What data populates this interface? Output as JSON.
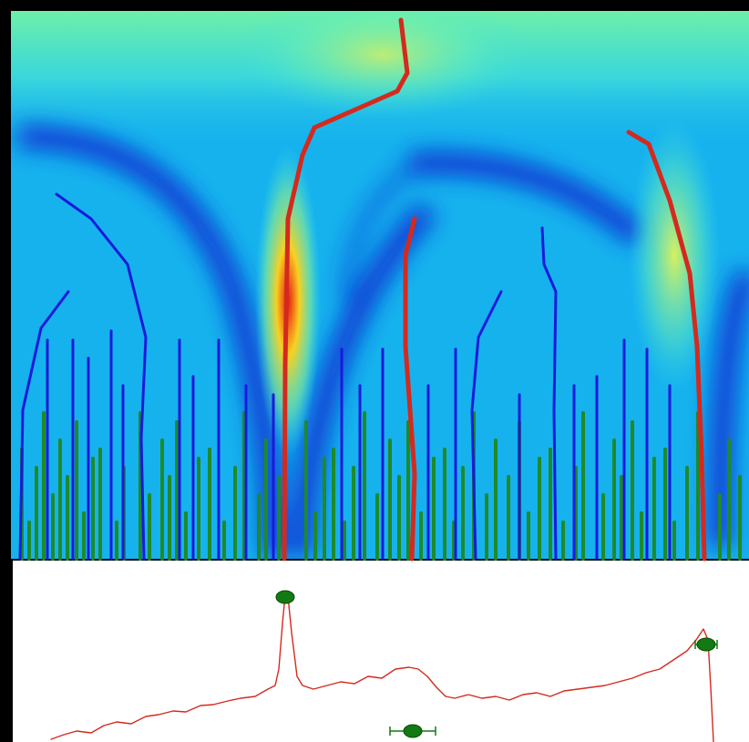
{
  "chart_data": [
    {
      "type": "ridge",
      "xlim": [
        0,
        808
      ],
      "ylim": [
        0,
        599
      ],
      "red_ridges": {
        "color": "#d42a1e",
        "lines": [
          {
            "x": [
              426,
              433,
              422,
              331,
              318,
              302,
              299,
              298
            ],
            "values": [
              591,
              533,
              513,
              473,
              443,
              373,
              213,
              0
            ]
          },
          {
            "x": [
              441,
              431,
              431,
              441,
              438
            ],
            "values": [
              373,
              333,
              233,
              93,
              0
            ]
          },
          {
            "x": [
              676,
              698,
              721,
              743,
              751,
              756,
              759
            ],
            "values": [
              468,
              455,
              393,
              313,
              233,
              113,
              0
            ]
          }
        ]
      },
      "blue_ridges": {
        "color": "#1a1adc",
        "lines": [
          {
            "x": [
              48,
              86,
              126,
              146,
              141,
              144
            ],
            "values": [
              400,
              373,
              323,
              243,
              133,
              0
            ]
          },
          {
            "x": [
              61,
              31,
              11,
              8
            ],
            "values": [
              293,
              253,
              163,
              0
            ]
          },
          {
            "x": [
              536,
              511,
              504,
              508
            ],
            "values": [
              293,
              243,
              163,
              0
            ]
          },
          {
            "x": [
              581,
              583,
              596,
              594,
              596
            ],
            "values": [
              363,
              323,
              293,
              163,
              0
            ]
          },
          {
            "x": [
              38,
              38
            ],
            "values": [
              240,
              0
            ]
          },
          {
            "x": [
              66,
              66
            ],
            "values": [
              240,
              0
            ]
          },
          {
            "x": [
              83,
              83
            ],
            "values": [
              220,
              0
            ]
          },
          {
            "x": [
              108,
              108
            ],
            "values": [
              250,
              0
            ]
          },
          {
            "x": [
              121,
              121
            ],
            "values": [
              190,
              0
            ]
          },
          {
            "x": [
              183,
              183
            ],
            "values": [
              240,
              0
            ]
          },
          {
            "x": [
              198,
              198
            ],
            "values": [
              200,
              0
            ]
          },
          {
            "x": [
              226,
              226
            ],
            "values": [
              240,
              0
            ]
          },
          {
            "x": [
              256,
              256
            ],
            "values": [
              190,
              0
            ]
          },
          {
            "x": [
              286,
              286
            ],
            "values": [
              180,
              0
            ]
          },
          {
            "x": [
              361,
              361
            ],
            "values": [
              230,
              0
            ]
          },
          {
            "x": [
              381,
              381
            ],
            "values": [
              190,
              0
            ]
          },
          {
            "x": [
              406,
              406
            ],
            "values": [
              230,
              0
            ]
          },
          {
            "x": [
              456,
              456
            ],
            "values": [
              190,
              0
            ]
          },
          {
            "x": [
              486,
              486
            ],
            "values": [
              230,
              0
            ]
          },
          {
            "x": [
              556,
              556
            ],
            "values": [
              180,
              0
            ]
          },
          {
            "x": [
              616,
              616
            ],
            "values": [
              190,
              0
            ]
          },
          {
            "x": [
              641,
              641
            ],
            "values": [
              200,
              0
            ]
          },
          {
            "x": [
              671,
              671
            ],
            "values": [
              240,
              0
            ]
          },
          {
            "x": [
              696,
              696
            ],
            "values": [
              230,
              0
            ]
          },
          {
            "x": [
              721,
              721
            ],
            "values": [
              190,
              0
            ]
          }
        ]
      },
      "green_ridges": {
        "color": "#1e8a2a",
        "lines": [
          {
            "x": [
              10,
              10
            ],
            "values": [
              120,
              0
            ]
          },
          {
            "x": [
              18,
              18
            ],
            "values": [
              40,
              0
            ]
          },
          {
            "x": [
              26,
              26
            ],
            "values": [
              100,
              0
            ]
          },
          {
            "x": [
              34,
              34
            ],
            "values": [
              160,
              0
            ]
          },
          {
            "x": [
              44,
              44
            ],
            "values": [
              70,
              0
            ]
          },
          {
            "x": [
              52,
              52
            ],
            "values": [
              130,
              0
            ]
          },
          {
            "x": [
              60,
              60
            ],
            "values": [
              90,
              0
            ]
          },
          {
            "x": [
              70,
              70
            ],
            "values": [
              150,
              0
            ]
          },
          {
            "x": [
              78,
              78
            ],
            "values": [
              50,
              0
            ]
          },
          {
            "x": [
              88,
              88
            ],
            "values": [
              110,
              0
            ]
          },
          {
            "x": [
              96,
              96
            ],
            "values": [
              120,
              0
            ]
          },
          {
            "x": [
              114,
              114
            ],
            "values": [
              40,
              0
            ]
          },
          {
            "x": [
              122,
              122
            ],
            "values": [
              100,
              0
            ]
          },
          {
            "x": [
              140,
              140
            ],
            "values": [
              160,
              0
            ]
          },
          {
            "x": [
              150,
              150
            ],
            "values": [
              70,
              0
            ]
          },
          {
            "x": [
              164,
              164
            ],
            "values": [
              130,
              0
            ]
          },
          {
            "x": [
              172,
              172
            ],
            "values": [
              90,
              0
            ]
          },
          {
            "x": [
              180,
              180
            ],
            "values": [
              150,
              0
            ]
          },
          {
            "x": [
              190,
              190
            ],
            "values": [
              50,
              0
            ]
          },
          {
            "x": [
              204,
              204
            ],
            "values": [
              110,
              0
            ]
          },
          {
            "x": [
              216,
              216
            ],
            "values": [
              120,
              0
            ]
          },
          {
            "x": [
              232,
              232
            ],
            "values": [
              40,
              0
            ]
          },
          {
            "x": [
              244,
              244
            ],
            "values": [
              100,
              0
            ]
          },
          {
            "x": [
              254,
              254
            ],
            "values": [
              160,
              0
            ]
          },
          {
            "x": [
              270,
              270
            ],
            "values": [
              70,
              0
            ]
          },
          {
            "x": [
              278,
              278
            ],
            "values": [
              130,
              0
            ]
          },
          {
            "x": [
              292,
              292
            ],
            "values": [
              90,
              0
            ]
          },
          {
            "x": [
              322,
              322
            ],
            "values": [
              150,
              0
            ]
          },
          {
            "x": [
              332,
              332
            ],
            "values": [
              50,
              0
            ]
          },
          {
            "x": [
              342,
              342
            ],
            "values": [
              110,
              0
            ]
          },
          {
            "x": [
              352,
              352
            ],
            "values": [
              120,
              0
            ]
          },
          {
            "x": [
              364,
              364
            ],
            "values": [
              40,
              0
            ]
          },
          {
            "x": [
              374,
              374
            ],
            "values": [
              100,
              0
            ]
          },
          {
            "x": [
              386,
              386
            ],
            "values": [
              160,
              0
            ]
          },
          {
            "x": [
              400,
              400
            ],
            "values": [
              70,
              0
            ]
          },
          {
            "x": [
              414,
              414
            ],
            "values": [
              130,
              0
            ]
          },
          {
            "x": [
              424,
              424
            ],
            "values": [
              90,
              0
            ]
          },
          {
            "x": [
              434,
              434
            ],
            "values": [
              150,
              0
            ]
          },
          {
            "x": [
              448,
              448
            ],
            "values": [
              50,
              0
            ]
          },
          {
            "x": [
              462,
              462
            ],
            "values": [
              110,
              0
            ]
          },
          {
            "x": [
              474,
              474
            ],
            "values": [
              120,
              0
            ]
          },
          {
            "x": [
              484,
              484
            ],
            "values": [
              40,
              0
            ]
          },
          {
            "x": [
              494,
              494
            ],
            "values": [
              100,
              0
            ]
          },
          {
            "x": [
              506,
              506
            ],
            "values": [
              160,
              0
            ]
          },
          {
            "x": [
              520,
              520
            ],
            "values": [
              70,
              0
            ]
          },
          {
            "x": [
              530,
              530
            ],
            "values": [
              130,
              0
            ]
          },
          {
            "x": [
              544,
              544
            ],
            "values": [
              90,
              0
            ]
          },
          {
            "x": [
              556,
              556
            ],
            "values": [
              150,
              0
            ]
          },
          {
            "x": [
              566,
              566
            ],
            "values": [
              50,
              0
            ]
          },
          {
            "x": [
              578,
              578
            ],
            "values": [
              110,
              0
            ]
          },
          {
            "x": [
              590,
              590
            ],
            "values": [
              120,
              0
            ]
          },
          {
            "x": [
              604,
              604
            ],
            "values": [
              40,
              0
            ]
          },
          {
            "x": [
              618,
              618
            ],
            "values": [
              100,
              0
            ]
          },
          {
            "x": [
              626,
              626
            ],
            "values": [
              160,
              0
            ]
          },
          {
            "x": [
              648,
              648
            ],
            "values": [
              70,
              0
            ]
          },
          {
            "x": [
              660,
              660
            ],
            "values": [
              130,
              0
            ]
          },
          {
            "x": [
              668,
              668
            ],
            "values": [
              90,
              0
            ]
          },
          {
            "x": [
              680,
              680
            ],
            "values": [
              150,
              0
            ]
          },
          {
            "x": [
              690,
              690
            ],
            "values": [
              50,
              0
            ]
          },
          {
            "x": [
              704,
              704
            ],
            "values": [
              110,
              0
            ]
          },
          {
            "x": [
              716,
              716
            ],
            "values": [
              120,
              0
            ]
          },
          {
            "x": [
              726,
              726
            ],
            "values": [
              40,
              0
            ]
          },
          {
            "x": [
              740,
              740
            ],
            "values": [
              100,
              0
            ]
          },
          {
            "x": [
              752,
              752
            ],
            "values": [
              160,
              0
            ]
          },
          {
            "x": [
              776,
              776
            ],
            "values": [
              70,
              0
            ]
          },
          {
            "x": [
              786,
              786
            ],
            "values": [
              130,
              0
            ]
          },
          {
            "x": [
              798,
              798
            ],
            "values": [
              90,
              0
            ]
          }
        ]
      }
    },
    {
      "type": "line",
      "xlim": [
        0,
        808
      ],
      "ylim": [
        0,
        201
      ],
      "x": [
        42,
        56,
        70,
        86,
        100,
        114,
        130,
        146,
        160,
        176,
        190,
        206,
        220,
        236,
        250,
        266,
        280,
        288,
        292,
        296,
        299,
        302,
        306,
        312,
        318,
        330,
        345,
        360,
        375,
        390,
        405,
        420,
        435,
        445,
        455,
        465,
        475,
        485,
        500,
        515,
        530,
        545,
        560,
        575,
        590,
        605,
        620,
        635,
        650,
        665,
        680,
        695,
        710,
        725,
        740,
        750,
        758,
        763,
        766,
        769
      ],
      "values": [
        3,
        8,
        12,
        10,
        18,
        22,
        20,
        28,
        30,
        34,
        33,
        40,
        41,
        45,
        48,
        50,
        58,
        62,
        80,
        130,
        162,
        160,
        120,
        72,
        62,
        58,
        62,
        66,
        64,
        72,
        70,
        80,
        82,
        80,
        72,
        60,
        50,
        48,
        52,
        48,
        50,
        46,
        52,
        54,
        50,
        56,
        58,
        60,
        62,
        66,
        70,
        76,
        80,
        90,
        100,
        112,
        124,
        112,
        60,
        0
      ],
      "color": "#d42a1e",
      "peaks": {
        "color": "#127a12",
        "x": [
          299,
          439,
          761
        ],
        "values": [
          159,
          12,
          107
        ],
        "xerr": [
          4,
          25,
          12
        ]
      }
    }
  ]
}
